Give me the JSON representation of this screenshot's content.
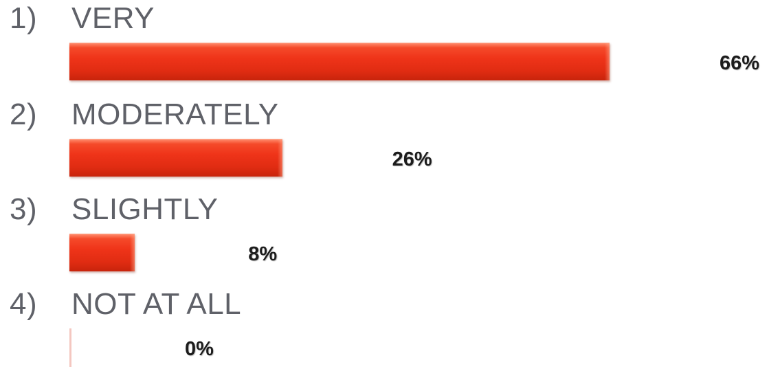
{
  "chart_data": {
    "type": "bar",
    "orientation": "horizontal",
    "categories": [
      "VERY",
      "MODERATELY",
      "SLIGHTLY",
      "NOT AT ALL"
    ],
    "item_numbers": [
      "1)",
      "2)",
      "3)",
      "4)"
    ],
    "values": [
      66,
      26,
      8,
      0
    ],
    "value_labels": [
      "66%",
      "26%",
      "8%",
      "0%"
    ],
    "xlim": [
      0,
      100
    ],
    "bar_color": "#ef3419",
    "grid": false,
    "legend": "none"
  }
}
